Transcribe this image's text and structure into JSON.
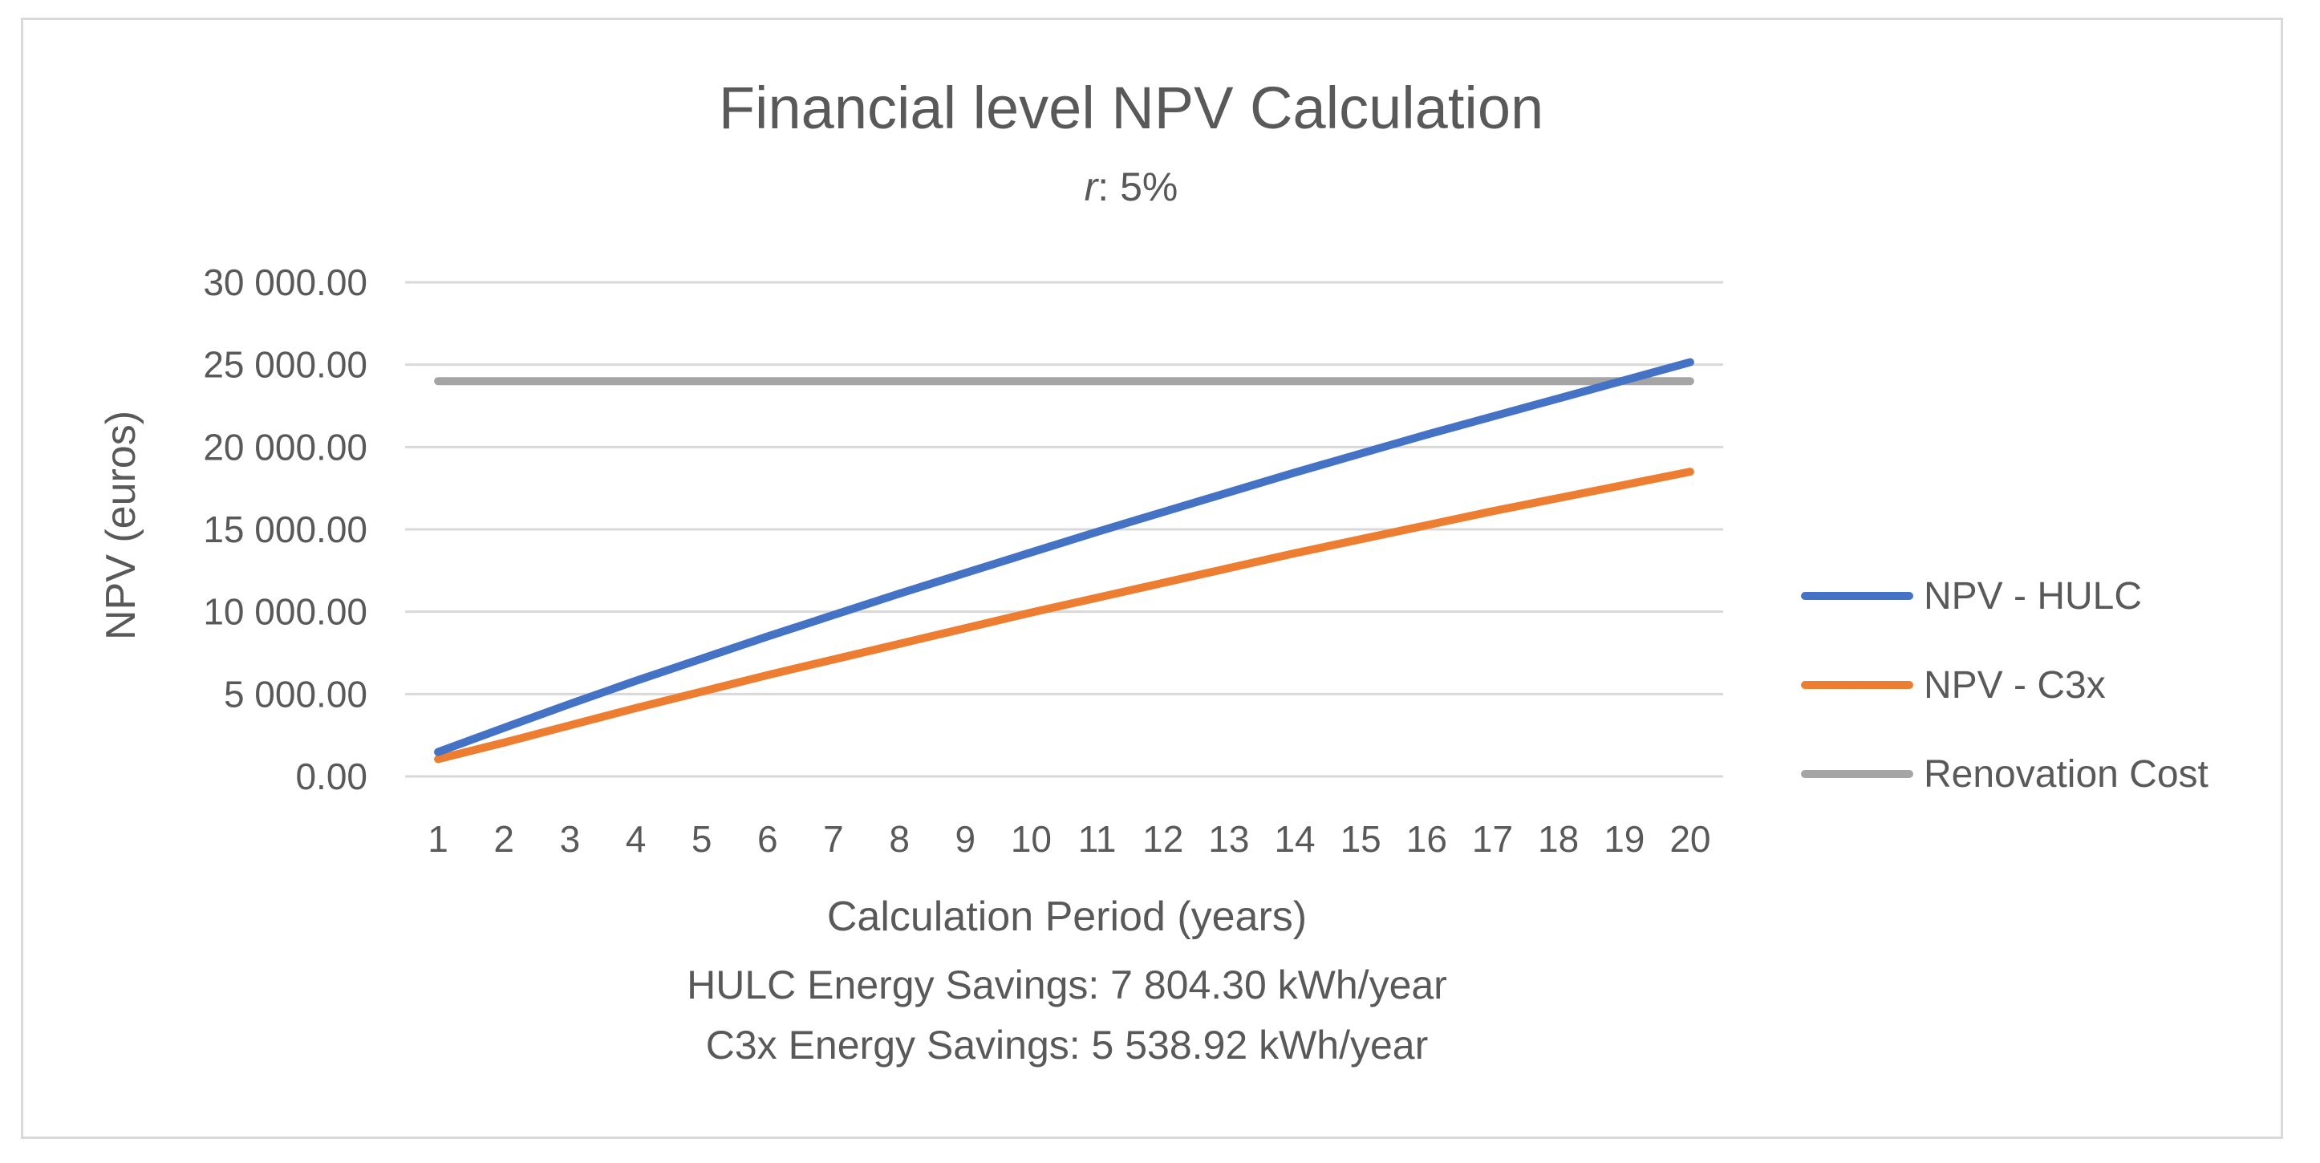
{
  "chart_data": {
    "type": "line",
    "title": "Financial level NPV Calculation",
    "subtitle_var": "r",
    "subtitle_rest": ": 5%",
    "xlabel": "Calculation Period (years)",
    "ylabel": "NPV (euros)",
    "categories": [
      "1",
      "2",
      "3",
      "4",
      "5",
      "6",
      "7",
      "8",
      "9",
      "10",
      "11",
      "12",
      "13",
      "14",
      "15",
      "16",
      "17",
      "18",
      "19",
      "20"
    ],
    "yticks": [
      "0.00",
      "5 000.00",
      "10 000.00",
      "15 000.00",
      "20 000.00",
      "25 000.00",
      "30 000.00"
    ],
    "ylim": [
      0,
      30000
    ],
    "grid": true,
    "legend_position": "right",
    "series": [
      {
        "name": "NPV - HULC",
        "color": "#4472c4",
        "values": [
          1480,
          2950,
          4400,
          5800,
          7150,
          8500,
          9800,
          11100,
          12350,
          13600,
          14850,
          16050,
          17250,
          18450,
          19600,
          20750,
          21850,
          22950,
          24050,
          25150
        ]
      },
      {
        "name": "NPV - C3x",
        "color": "#ed7d31",
        "values": [
          1050,
          2050,
          3100,
          4150,
          5150,
          6150,
          7100,
          8050,
          9000,
          9950,
          10850,
          11750,
          12650,
          13550,
          14400,
          15250,
          16100,
          16900,
          17700,
          18500
        ]
      },
      {
        "name": "Renovation Cost",
        "color": "#a5a5a5",
        "values": [
          24000,
          24000,
          24000,
          24000,
          24000,
          24000,
          24000,
          24000,
          24000,
          24000,
          24000,
          24000,
          24000,
          24000,
          24000,
          24000,
          24000,
          24000,
          24000,
          24000
        ]
      }
    ],
    "annotations": [
      "HULC Energy Savings: 7 804.30 kWh/year",
      "C3x Energy Savings: 5 538.92 kWh/year"
    ]
  }
}
